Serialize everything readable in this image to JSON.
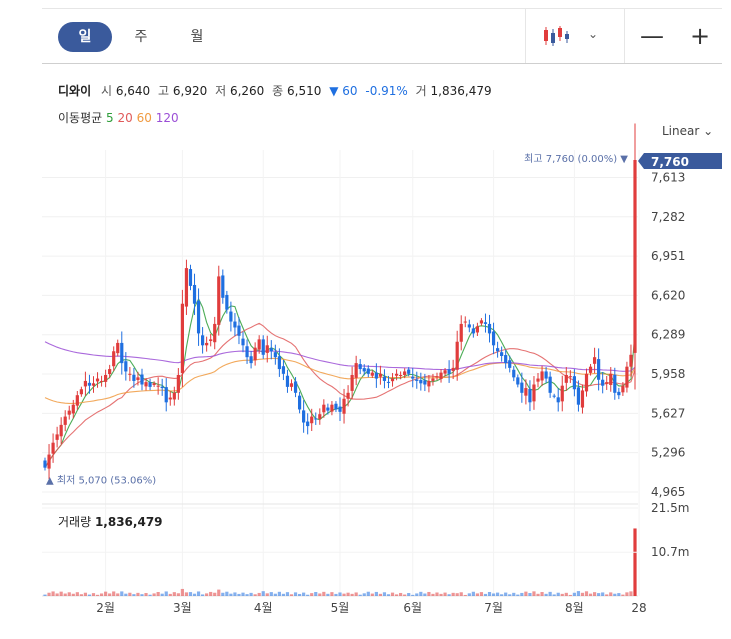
{
  "tabs": [
    {
      "label": "일",
      "active": true
    },
    {
      "label": "주",
      "active": false
    },
    {
      "label": "월",
      "active": false
    }
  ],
  "toolbar": {
    "chart_type_icon": "candlestick-icon",
    "dropdown_icon": "chevron-down-icon",
    "zoom_out": "—",
    "zoom_in": "+"
  },
  "stock": {
    "name": "디와이",
    "open_label": "시",
    "open": "6,640",
    "high_label": "고",
    "high": "6,920",
    "low_label": "저",
    "low": "6,260",
    "close_label": "종",
    "close": "6,510",
    "change_arrow": "▼",
    "change": "60",
    "change_pct": "-0.91%",
    "volume_label": "거",
    "volume": "1,836,479"
  },
  "moving_average": {
    "label": "이동평균",
    "periods": [
      {
        "label": "5",
        "color": "#2e9e3a"
      },
      {
        "label": "20",
        "color": "#e05a5a"
      },
      {
        "label": "60",
        "color": "#f09a40"
      },
      {
        "label": "120",
        "color": "#9b4fd6"
      }
    ]
  },
  "scale": {
    "label": "Linear",
    "icon": "chevron-down-icon"
  },
  "volume_panel": {
    "label": "거래량",
    "value": "1,836,479",
    "ticks": [
      "21.5m",
      "10.7m"
    ]
  },
  "chart_data": {
    "type": "candlestick",
    "y_ticks": [
      "7,613",
      "7,282",
      "6,951",
      "6,620",
      "6,289",
      "5,958",
      "5,627",
      "5,296",
      "4,965"
    ],
    "y_tick_values": [
      7613,
      7282,
      6951,
      6620,
      6289,
      5958,
      5627,
      5296,
      4965
    ],
    "ylim": [
      4965,
      7760
    ],
    "x_ticks": [
      "2월",
      "3월",
      "4월",
      "5월",
      "6월",
      "7월",
      "8월",
      "28"
    ],
    "x_tick_index": [
      15,
      34,
      54,
      73,
      91,
      111,
      131,
      147
    ],
    "current_price": "7,760",
    "max_label": "최고 7,760 (0.00%)",
    "min_label": "최저 5,070 (53.06%)",
    "up_color": "#e03c3c",
    "down_color": "#1f6fe0",
    "colors": {
      "ma5": "#2e9e3a",
      "ma20": "#e05a5a",
      "ma60": "#f09a40",
      "ma120": "#9b4fd6"
    },
    "closes": [
      5170,
      5280,
      5380,
      5450,
      5530,
      5600,
      5650,
      5700,
      5780,
      5830,
      5900,
      5860,
      5880,
      5920,
      5900,
      5950,
      6000,
      6150,
      6220,
      6050,
      5980,
      5960,
      5900,
      5930,
      5870,
      5890,
      5850,
      5880,
      5860,
      5840,
      5720,
      5760,
      5800,
      5950,
      6550,
      6850,
      6700,
      6550,
      6300,
      6200,
      6220,
      6250,
      6380,
      6780,
      6600,
      6500,
      6400,
      6350,
      6280,
      6200,
      6100,
      6050,
      6180,
      6250,
      6120,
      6200,
      6150,
      6100,
      6000,
      5960,
      5850,
      5880,
      5800,
      5660,
      5550,
      5520,
      5600,
      5580,
      5620,
      5700,
      5650,
      5700,
      5660,
      5640,
      5750,
      5800,
      5950,
      6050,
      6000,
      5980,
      5960,
      5970,
      5920,
      5960,
      5900,
      5890,
      5920,
      5960,
      5950,
      5980,
      5960,
      5920,
      5900,
      5880,
      5870,
      5900,
      5920,
      5940,
      5970,
      5990,
      5960,
      6010,
      6230,
      6380,
      6400,
      6350,
      6300,
      6360,
      6410,
      6380,
      6300,
      6200,
      6150,
      6110,
      6050,
      6010,
      5930,
      5870,
      5800,
      5840,
      5720,
      5870,
      5920,
      5980,
      5920,
      5800,
      5770,
      5720,
      5860,
      5950,
      5940,
      5830,
      5700,
      5820,
      5960,
      6020,
      6100,
      5910,
      5860,
      5890,
      5960,
      5800,
      5780,
      5860,
      6020,
      6120,
      7760
    ],
    "volume_max": 21500000
  }
}
